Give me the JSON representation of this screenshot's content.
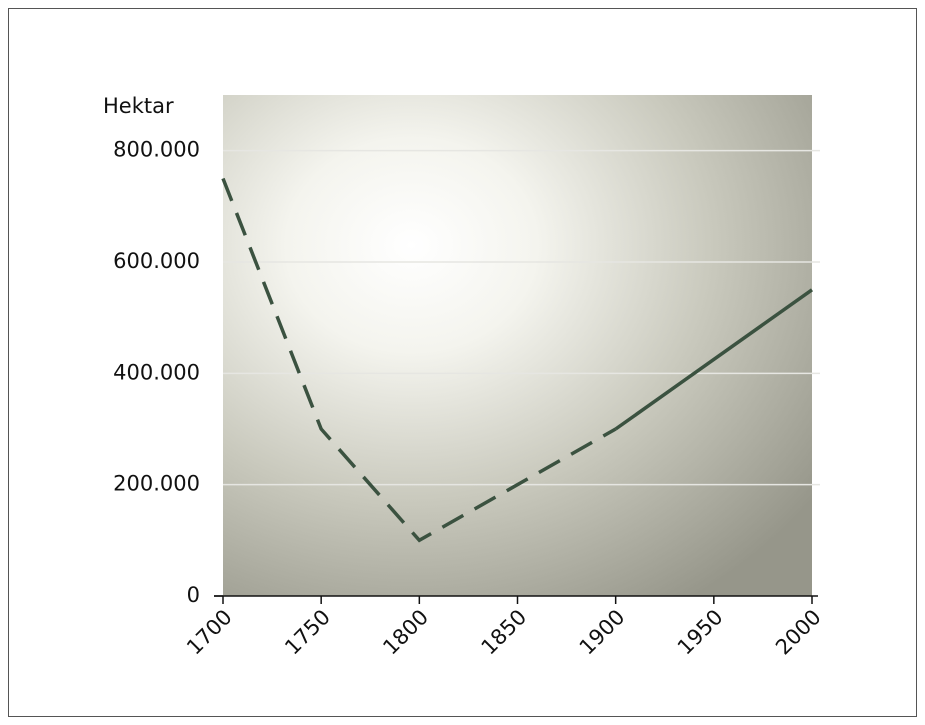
{
  "chart_data": {
    "type": "line",
    "y_label": "Hektar",
    "x": [
      1700,
      1750,
      1800,
      1900,
      2000
    ],
    "series": [
      {
        "color": "#3b5240",
        "dashed": true,
        "values": [
          750000,
          300000,
          100000,
          300000,
          null
        ]
      },
      {
        "color": "#3b5240",
        "dashed": false,
        "values": [
          null,
          null,
          null,
          300000,
          550000
        ]
      }
    ],
    "xlim": [
      1700,
      2000
    ],
    "xticks": [
      1700,
      1750,
      1800,
      1850,
      1900,
      1950,
      2000
    ],
    "ylim": [
      0,
      900000
    ],
    "yticks": [
      0,
      {
        "value": 200000,
        "label": "200.000"
      },
      {
        "value": 400000,
        "label": "400.000"
      },
      {
        "value": 600000,
        "label": "600.000"
      },
      {
        "value": 800000,
        "label": "800.000"
      }
    ],
    "grid": true
  }
}
